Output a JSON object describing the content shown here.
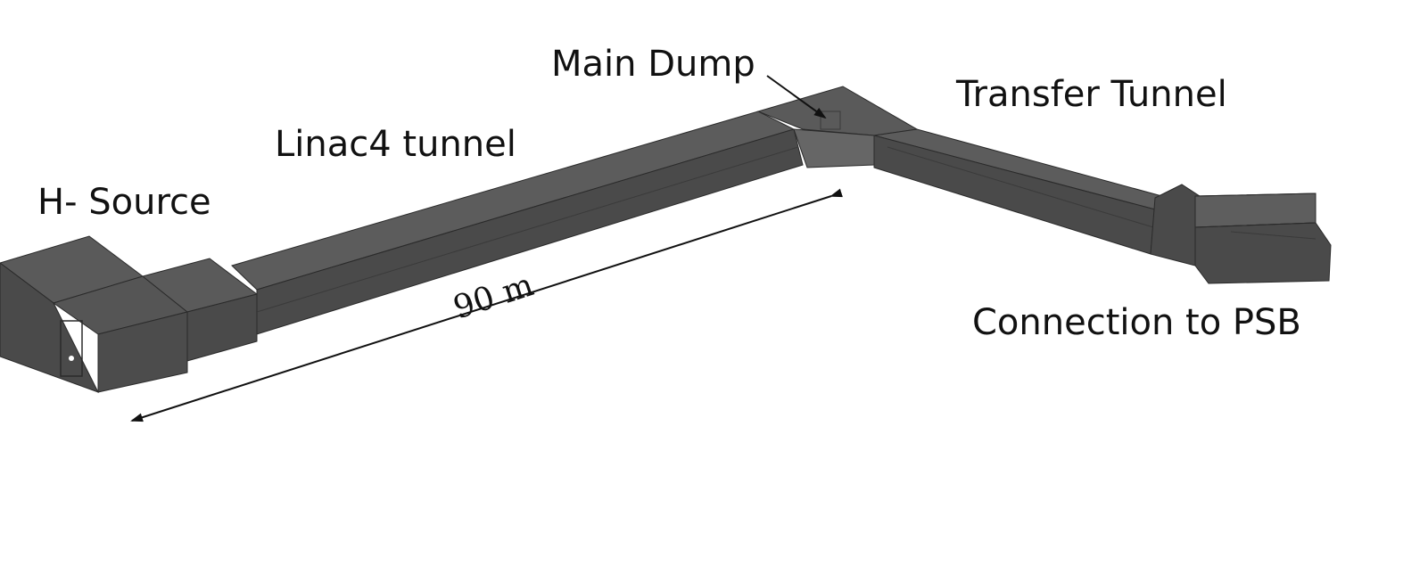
{
  "labels": {
    "h_source": "H- Source",
    "linac4_tunnel": "Linac4 tunnel",
    "main_dump": "Main Dump",
    "transfer_tunnel": "Transfer Tunnel",
    "connection_psb": "Connection to PSB"
  },
  "dimension": {
    "text": "90 m"
  },
  "colors": {
    "tunnel_top": "#5a5a5a",
    "tunnel_side": "#4a4a4a",
    "tunnel_dark": "#3a3a3a",
    "edge": "#2a2a2a",
    "arrow": "#111111"
  }
}
